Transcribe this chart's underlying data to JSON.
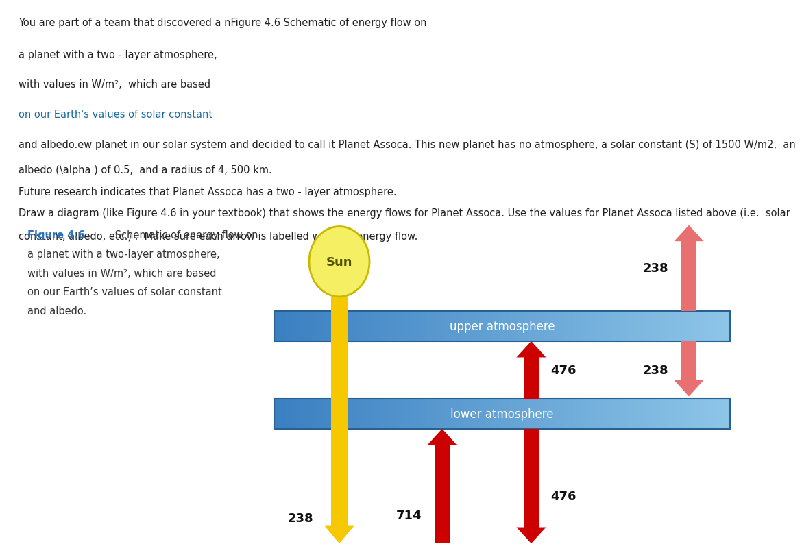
{
  "fig_width": 11.2,
  "fig_height": 8.02,
  "background_color": "#ffffff",
  "caption_color": "#2e75b6",
  "caption_text_color": "#333333",
  "caption_bold": "Figure 4.6",
  "sun_color": "#f5f063",
  "sun_outline": "#c8b800",
  "sun_label": "Sun",
  "upper_atm_label": "upper atmosphere",
  "lower_atm_label": "lower atmosphere",
  "atm_color_left": "#3a7fc1",
  "atm_color_right": "#8ec6e8",
  "atm_text_color": "#ffffff",
  "yellow_arrow_color": "#f5c800",
  "red_dark_arrow_color": "#cc0000",
  "red_light_arrow_color": "#e87070",
  "val_incoming": 238,
  "val_surface_up": 714,
  "val_lower_to_upper": 476,
  "val_lower_emit_down": 476,
  "val_upper_emit_up": 238,
  "val_upper_emit_down": 238,
  "text_lines": [
    "You are part of a team that discovered a nFigure 4.6 Schematic of energy flow on",
    "a planet with a two - layer atmosphere,",
    "with values in W/m²,  which are based",
    "on our Earth's values of solar constant",
    "and albedo.ew planet in our solar system and decided to call it Planet Assoca. This new planet has no atmosphere, a solar constant (S) of 1500 W/m2,  an",
    "albedo (\\alpha ) of 0.5,  and a radius of 4, 500 km.",
    "Future research indicates that Planet Assoca has a two - layer atmosphere.",
    "Draw a diagram (like Figure 4.6 in your textbook) that shows the energy flows for Planet Assoca. Use the values for Planet Assoca listed above (i.e.  solar",
    "constant, albedo, etc.) .  Make sure each arrow is labelled with the energy flow."
  ],
  "text_colors": [
    "#222222",
    "#222222",
    "#222222",
    "#1a6b9e",
    "#222222",
    "#222222",
    "#222222",
    "#222222",
    "#222222"
  ]
}
